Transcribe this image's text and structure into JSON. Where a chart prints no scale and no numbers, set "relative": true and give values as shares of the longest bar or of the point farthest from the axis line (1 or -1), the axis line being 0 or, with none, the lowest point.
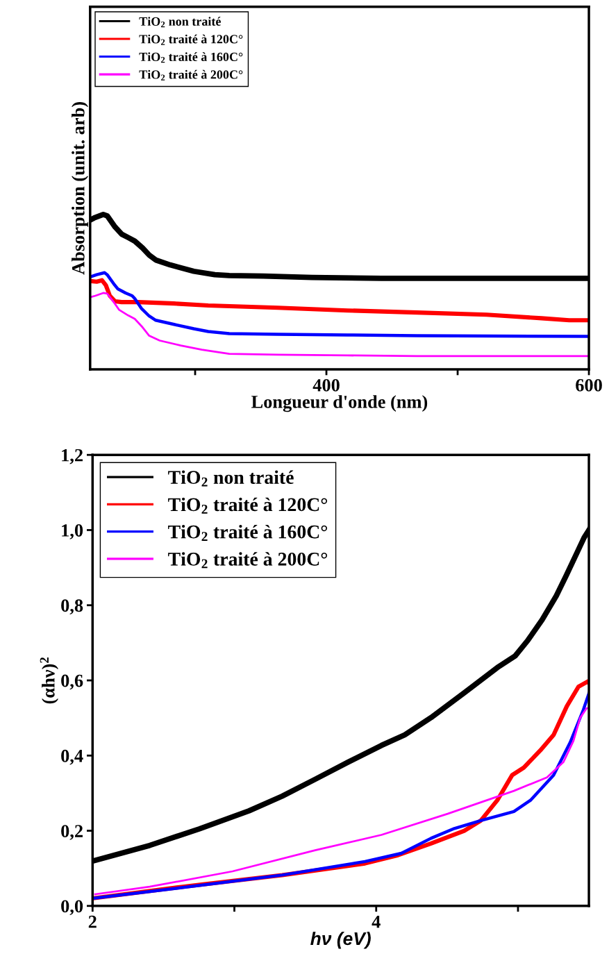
{
  "chart_data": [
    {
      "type": "line",
      "xlabel": "Longueur d'onde (nm)",
      "ylabel": "Absorption (unit. arb)",
      "relative": true,
      "xlim": [
        220,
        600
      ],
      "xticks": [
        {
          "value": 300,
          "label": null
        },
        400,
        {
          "value": 500,
          "label": null
        },
        600
      ],
      "legend": "top left",
      "grid": false,
      "series": [
        {
          "name": "TiO$_{2}$ non traité",
          "color": "#000000",
          "x": [
            220,
            223,
            230,
            233,
            239,
            244,
            249,
            254,
            260,
            265,
            270,
            281,
            299,
            315,
            326,
            352,
            389,
            442,
            495,
            548,
            600
          ],
          "values": [
            0.964,
            0.977,
            1.0,
            0.991,
            0.919,
            0.873,
            0.851,
            0.828,
            0.783,
            0.738,
            0.706,
            0.674,
            0.633,
            0.611,
            0.606,
            0.602,
            0.593,
            0.588,
            0.588,
            0.588,
            0.588
          ]
        },
        {
          "name": "TiO$_{2}$ traité à 120C°",
          "color": "#ff0000",
          "x": [
            220,
            225,
            229,
            232,
            235,
            239,
            244,
            257,
            284,
            310,
            363,
            416,
            469,
            522,
            564,
            585,
            600
          ],
          "values": [
            0.57,
            0.566,
            0.575,
            0.543,
            0.475,
            0.439,
            0.434,
            0.434,
            0.425,
            0.412,
            0.398,
            0.38,
            0.367,
            0.353,
            0.33,
            0.317,
            0.317
          ]
        },
        {
          "name": "TiO$_{2}$ traité à 160C°",
          "color": "#0000ff",
          "x": [
            220,
            225,
            231,
            233,
            238,
            241,
            247,
            252,
            254,
            259,
            265,
            270,
            284,
            299,
            310,
            326,
            363,
            416,
            469,
            600
          ],
          "values": [
            0.597,
            0.611,
            0.624,
            0.611,
            0.552,
            0.52,
            0.493,
            0.475,
            0.457,
            0.394,
            0.344,
            0.317,
            0.29,
            0.262,
            0.244,
            0.231,
            0.226,
            0.222,
            0.217,
            0.213
          ]
        },
        {
          "name": "TiO$_{2}$ traité à 200C°",
          "color": "#ff00ff",
          "x": [
            220,
            224,
            230,
            233,
            238,
            242,
            249,
            254,
            260,
            265,
            273,
            289,
            305,
            326,
            363,
            416,
            469,
            600
          ],
          "values": [
            0.466,
            0.475,
            0.493,
            0.489,
            0.434,
            0.385,
            0.348,
            0.326,
            0.271,
            0.217,
            0.186,
            0.154,
            0.127,
            0.1,
            0.095,
            0.09,
            0.086,
            0.086
          ]
        }
      ]
    },
    {
      "type": "line",
      "xlabel": "hν (eV)",
      "ylabel": "(αhν)$^{2}$",
      "xlim": [
        2,
        5.5
      ],
      "xticks": [
        2,
        {
          "value": 3,
          "label": null
        },
        4,
        {
          "value": 5,
          "label": null
        }
      ],
      "ylim": [
        0,
        1.2
      ],
      "yticks": [
        {
          "value": 0,
          "label": "0,0"
        },
        {
          "value": 0.2,
          "label": "0,2"
        },
        {
          "value": 0.4,
          "label": "0,4"
        },
        {
          "value": 0.6,
          "label": "0,6"
        },
        {
          "value": 0.8,
          "label": "0,8"
        },
        {
          "value": 1.0,
          "label": "1,0"
        },
        {
          "value": 1.2,
          "label": "1,2"
        }
      ],
      "legend": "top left",
      "grid": false,
      "series": [
        {
          "name": "TiO$_{2}$ non traité",
          "color": "#000000",
          "x": [
            2.018,
            2.403,
            2.753,
            3.103,
            3.337,
            3.57,
            3.804,
            4.037,
            4.201,
            4.387,
            4.621,
            4.854,
            4.98,
            5.07,
            5.17,
            5.27,
            5.34,
            5.42,
            5.466,
            5.5
          ],
          "values": [
            0.121,
            0.161,
            0.205,
            0.253,
            0.292,
            0.337,
            0.383,
            0.427,
            0.455,
            0.501,
            0.567,
            0.634,
            0.665,
            0.707,
            0.761,
            0.825,
            0.879,
            0.943,
            0.98,
            1.0
          ]
        },
        {
          "name": "TiO$_{2}$ traité à 120C°",
          "color": "#ff0000",
          "x": [
            2.018,
            2.637,
            3.337,
            3.921,
            4.154,
            4.387,
            4.621,
            4.738,
            4.854,
            4.959,
            5.041,
            5.158,
            5.251,
            5.344,
            5.426,
            5.496,
            5.5
          ],
          "values": [
            0.021,
            0.051,
            0.082,
            0.113,
            0.135,
            0.166,
            0.2,
            0.227,
            0.281,
            0.348,
            0.368,
            0.414,
            0.455,
            0.531,
            0.583,
            0.598,
            0.595
          ]
        },
        {
          "name": "TiO$_{2}$ traité à 160C°",
          "color": "#0000ff",
          "x": [
            2.018,
            2.637,
            3.337,
            3.921,
            4.178,
            4.387,
            4.551,
            4.738,
            4.971,
            5.088,
            5.251,
            5.368,
            5.461,
            5.5
          ],
          "values": [
            0.021,
            0.049,
            0.082,
            0.118,
            0.14,
            0.18,
            0.206,
            0.227,
            0.251,
            0.281,
            0.348,
            0.435,
            0.522,
            0.565
          ]
        },
        {
          "name": "TiO$_{2}$ traité à 200C°",
          "color": "#ff00ff",
          "x": [
            2.018,
            2.403,
            2.987,
            3.57,
            4.037,
            4.504,
            4.971,
            5.204,
            5.321,
            5.391,
            5.438,
            5.484,
            5.5
          ],
          "values": [
            0.031,
            0.051,
            0.092,
            0.148,
            0.189,
            0.245,
            0.306,
            0.342,
            0.383,
            0.439,
            0.5,
            0.526,
            0.526
          ]
        }
      ]
    }
  ]
}
